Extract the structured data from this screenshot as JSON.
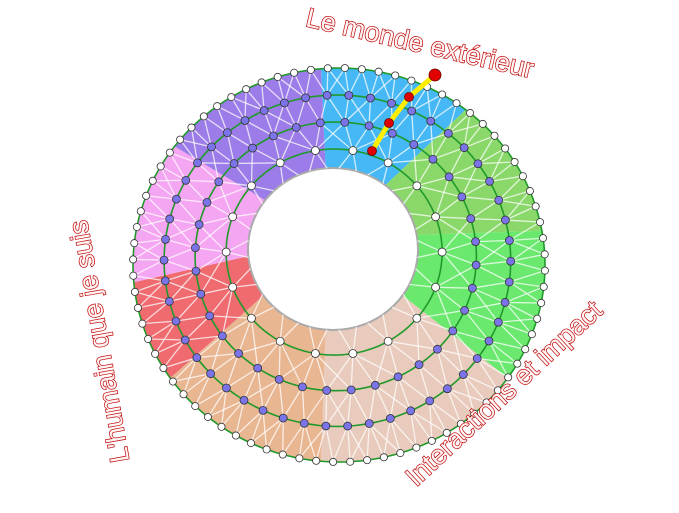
{
  "labels": {
    "top": "Le monde extérieur",
    "right": "Interactions et impact",
    "left": "L'humain que je suis"
  },
  "colors": {
    "label_outline": "#c00000",
    "ring_line": "#1f9a2a",
    "outer_node": "#ffffff",
    "mid_node": "#7b74e8",
    "path": "#ffee00",
    "path_node": "#e00000",
    "sectors": [
      "#45b8f5",
      "#8bd86a",
      "#6ae96e",
      "#e8cbbc",
      "#e9b692",
      "#ef6b70",
      "#f5a6f2",
      "#9b7ce8"
    ]
  }
}
